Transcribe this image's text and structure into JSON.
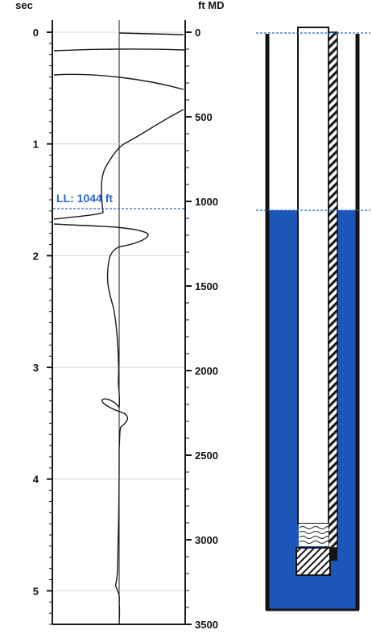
{
  "colors": {
    "fluid": "#1c56b8",
    "level_line": "#2a66cc",
    "ink": "#1a1a1a"
  },
  "units": {
    "time": "sec",
    "depth": "ft MD"
  },
  "fluid_level": {
    "label": "LL: 1044 ft",
    "depth_ft": 1044
  },
  "axes": {
    "time_ticks": [
      "0",
      "1",
      "2",
      "3",
      "4",
      "5"
    ],
    "time_range_sec": [
      0,
      5.3
    ],
    "depth_ticks": [
      "0",
      "500",
      "1000",
      "1500",
      "2000",
      "2500",
      "3000",
      "3500"
    ],
    "depth_range_ft": [
      0,
      3500
    ]
  },
  "wellbore": {
    "icons": [
      "tubing-hatch",
      "pump-hatch",
      "wavy-hatch"
    ]
  }
}
